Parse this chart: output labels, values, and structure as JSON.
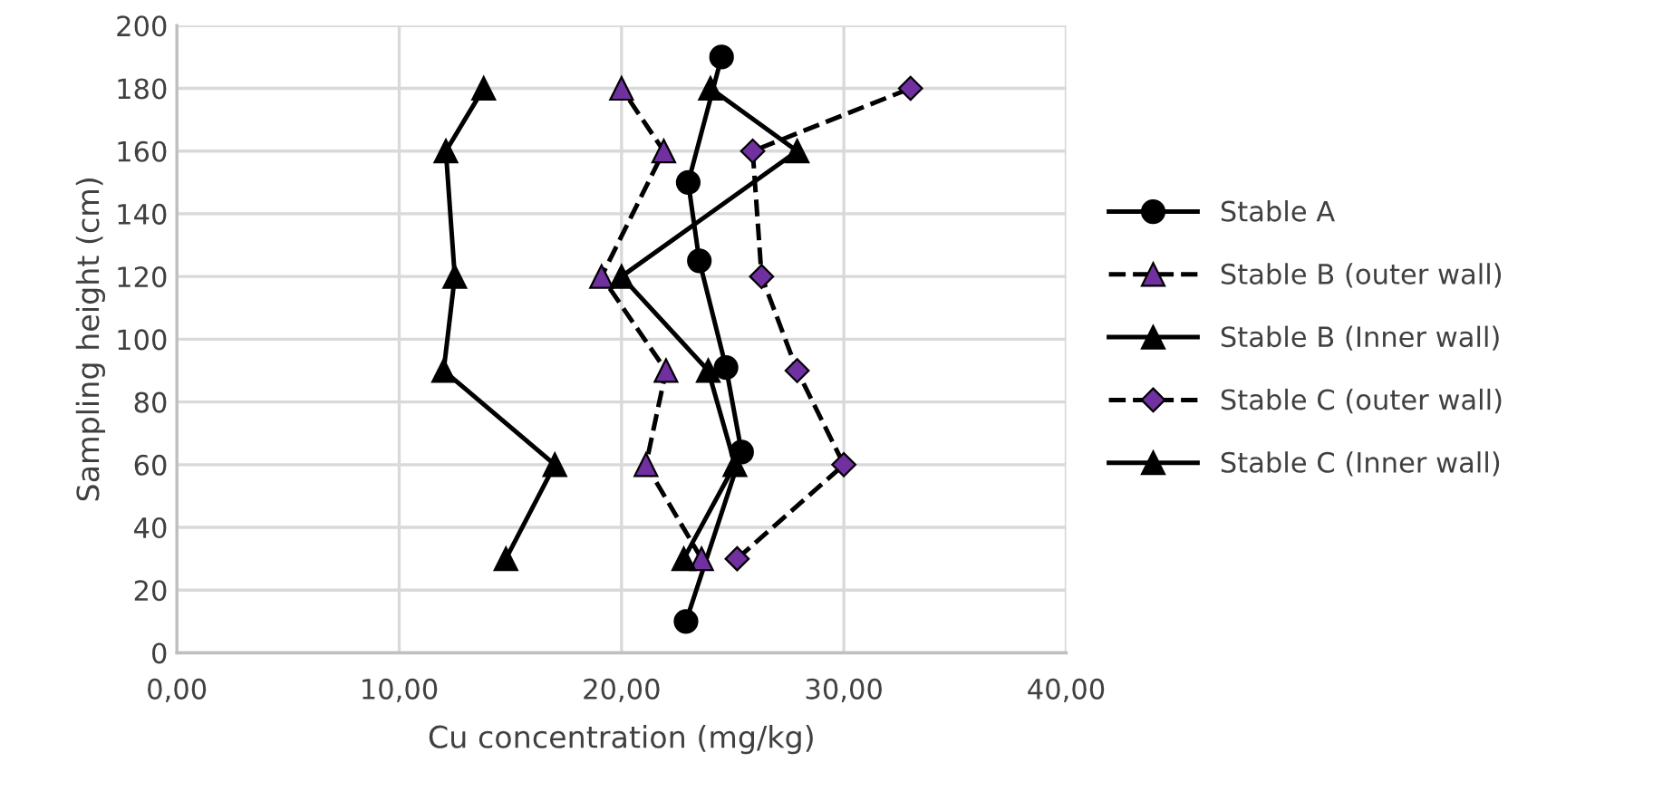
{
  "chart_data": {
    "type": "line",
    "xlabel": "Cu concentration (mg/kg)",
    "ylabel": "Sampling height (cm)",
    "xlim": [
      0,
      40
    ],
    "xticks": [
      {
        "value": 0,
        "label": "0,00"
      },
      {
        "value": 10,
        "label": "10,00"
      },
      {
        "value": 20,
        "label": "20,00"
      },
      {
        "value": 30,
        "label": "30,00"
      },
      {
        "value": 40,
        "label": "40,00"
      }
    ],
    "ylim": [
      0,
      200
    ],
    "yticks": [
      0,
      20,
      40,
      60,
      80,
      100,
      120,
      140,
      160,
      180,
      200
    ],
    "grid": true,
    "legend": "right",
    "series": [
      {
        "name": "Stable A",
        "color": "#000000",
        "marker": "circle",
        "line_style": "solid",
        "x": [
          22.9,
          25.4,
          24.7,
          23.5,
          23.0,
          24.5
        ],
        "values": [
          10,
          64,
          91,
          125,
          150,
          190
        ]
      },
      {
        "name": "Stable B (outer wall)",
        "color": "#7030a0",
        "marker": "triangle",
        "line_style": "dashed",
        "x": [
          23.6,
          21.1,
          22.0,
          19.1,
          21.9,
          20.0
        ],
        "values": [
          30,
          60,
          90,
          120,
          160,
          180
        ]
      },
      {
        "name": "Stable B (Inner wall)",
        "color": "#000000",
        "marker": "triangle",
        "line_style": "solid",
        "x": [
          14.8,
          17.0,
          12.0,
          12.5,
          12.1,
          13.8
        ],
        "values": [
          30,
          60,
          90,
          120,
          160,
          180
        ]
      },
      {
        "name": "Stable C (outer wall)",
        "color": "#7030a0",
        "marker": "diamond",
        "line_style": "dashed",
        "x": [
          25.2,
          30.0,
          27.9,
          26.3,
          25.9,
          33.0
        ],
        "values": [
          30,
          60,
          90,
          120,
          160,
          180
        ]
      },
      {
        "name": "Stable C (Inner wall)",
        "color": "#000000",
        "marker": "triangle",
        "line_style": "solid",
        "x": [
          22.8,
          25.1,
          23.9,
          20.0,
          27.9,
          24.0
        ],
        "values": [
          30,
          60,
          90,
          120,
          160,
          180
        ]
      }
    ]
  }
}
